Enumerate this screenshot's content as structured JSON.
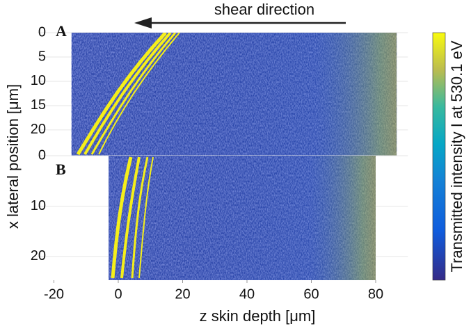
{
  "chart_data": [
    {
      "type": "image",
      "panel_label": "A",
      "annotation": "shear direction",
      "ylabel": "x lateral position [μm]",
      "ylim": [
        0,
        25.3
      ],
      "yticks": [
        0,
        5,
        10,
        15,
        20
      ],
      "y_inverted": true,
      "extent_x": [
        -14.5,
        86.5
      ],
      "xlim": [
        -25,
        90
      ],
      "colorbar_label": "Transmitted intensity I at 530.1 eV"
    },
    {
      "type": "image",
      "panel_label": "B",
      "xlabel": "z skin depth [μm]",
      "ylim": [
        0,
        24.7
      ],
      "yticks": [
        0,
        10,
        20
      ],
      "y_inverted": true,
      "extent_x": [
        -3,
        80
      ],
      "xlim": [
        -25,
        90
      ],
      "xticks": [
        -20,
        0,
        20,
        40,
        60,
        80
      ]
    }
  ]
}
